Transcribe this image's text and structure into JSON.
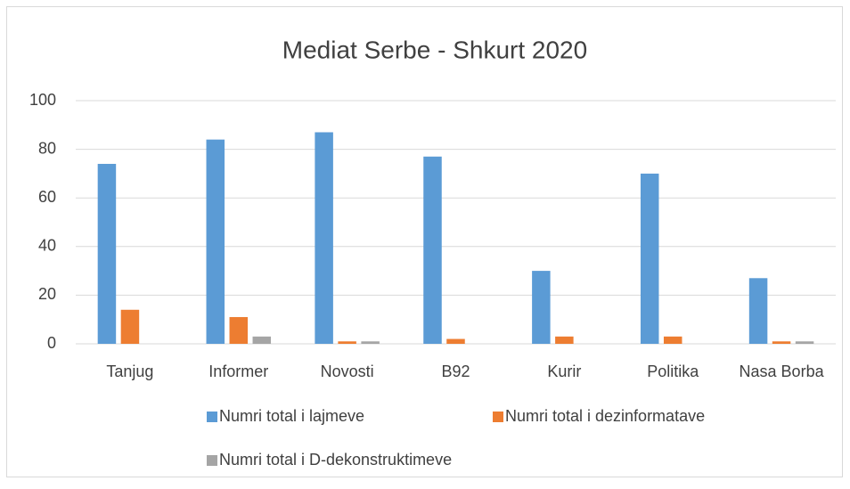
{
  "chart_data": {
    "type": "bar",
    "title": "Mediat Serbe - Shkurt 2020",
    "categories": [
      "Tanjug",
      "Informer",
      "Novosti",
      "B92",
      "Kurir",
      "Politika",
      "Nasa Borba"
    ],
    "series": [
      {
        "name": "Numri total i lajmeve",
        "color": "#5b9bd5",
        "values": [
          74,
          84,
          87,
          77,
          30,
          70,
          27
        ]
      },
      {
        "name": "Numri total i dezinformatave",
        "color": "#ed7d31",
        "values": [
          14,
          11,
          1,
          2,
          3,
          3,
          1
        ]
      },
      {
        "name": "Numri total i D-dekonstruktimeve",
        "color": "#a5a5a5",
        "values": [
          0,
          3,
          1,
          0,
          0,
          0,
          1
        ]
      }
    ],
    "ylim": [
      0,
      100
    ],
    "yticks": [
      0,
      20,
      40,
      60,
      80,
      100
    ],
    "grid": true,
    "legend": "bottom"
  }
}
